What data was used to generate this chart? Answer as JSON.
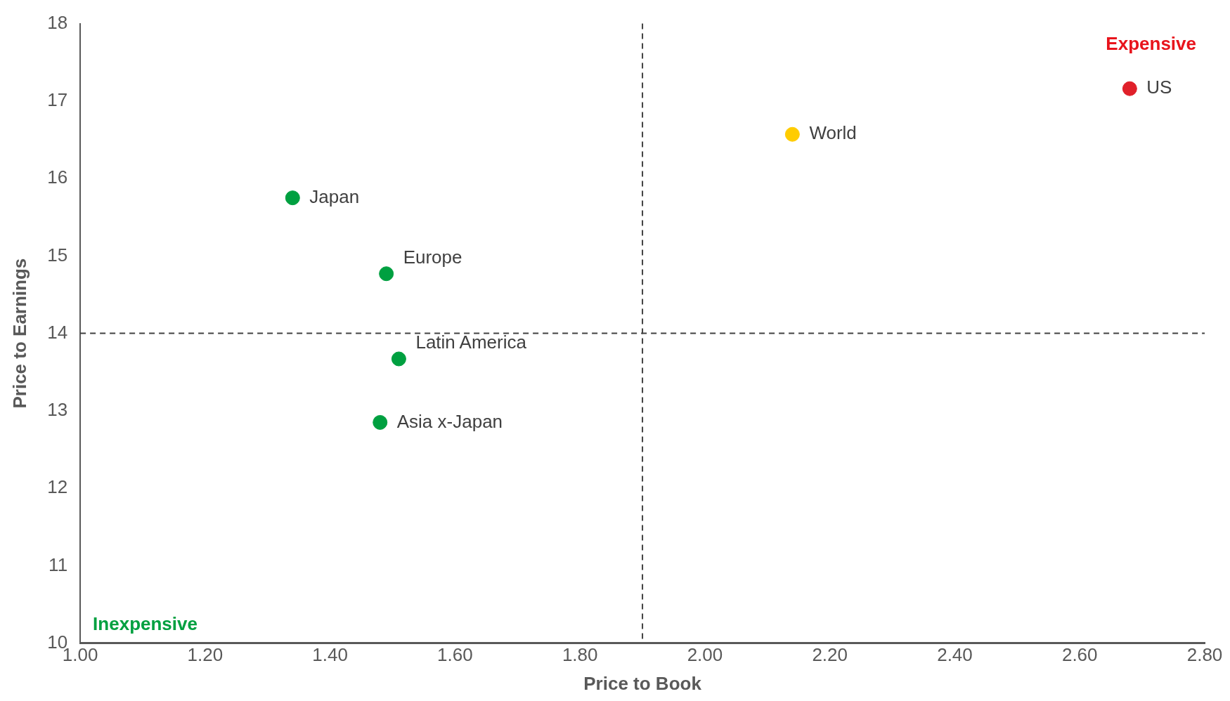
{
  "chart_data": {
    "type": "scatter",
    "xlabel": "Price to Book",
    "ylabel": "Price to Earnings",
    "xlim": [
      1.0,
      2.8
    ],
    "ylim": [
      10,
      18
    ],
    "xticks": [
      {
        "value": 1.0,
        "label": "1.00"
      },
      {
        "value": 1.2,
        "label": "1.20"
      },
      {
        "value": 1.4,
        "label": "1.40"
      },
      {
        "value": 1.6,
        "label": "1.60"
      },
      {
        "value": 1.8,
        "label": "1.80"
      },
      {
        "value": 2.0,
        "label": "2.00"
      },
      {
        "value": 2.2,
        "label": "2.20"
      },
      {
        "value": 2.4,
        "label": "2.40"
      },
      {
        "value": 2.6,
        "label": "2.60"
      },
      {
        "value": 2.8,
        "label": "2.80"
      }
    ],
    "yticks": [
      10,
      11,
      12,
      13,
      14,
      15,
      16,
      17,
      18
    ],
    "grid": false,
    "legend": false,
    "marker": "circle",
    "series": [
      {
        "name": "Japan",
        "color": "#00a040",
        "x": [
          1.34
        ],
        "values": [
          15.75
        ]
      },
      {
        "name": "Europe",
        "color": "#00a040",
        "x": [
          1.49
        ],
        "values": [
          14.77
        ]
      },
      {
        "name": "Latin America",
        "color": "#00a040",
        "x": [
          1.51
        ],
        "values": [
          13.67
        ]
      },
      {
        "name": "Asia x-Japan",
        "color": "#00a040",
        "x": [
          1.48
        ],
        "values": [
          12.85
        ]
      },
      {
        "name": "World",
        "color": "#ffcc00",
        "x": [
          2.14
        ],
        "values": [
          16.57
        ]
      },
      {
        "name": "US",
        "color": "#e0202a",
        "x": [
          2.68
        ],
        "values": [
          17.16
        ]
      }
    ],
    "ref_lines": [
      {
        "axis": "x",
        "value": 1.9,
        "line_style": "dashed",
        "color": "#404040"
      },
      {
        "axis": "y",
        "value": 14,
        "line_style": "dashed",
        "color": "#404040"
      }
    ],
    "annotations": [
      "Expensive",
      "Inexpensive"
    ]
  }
}
